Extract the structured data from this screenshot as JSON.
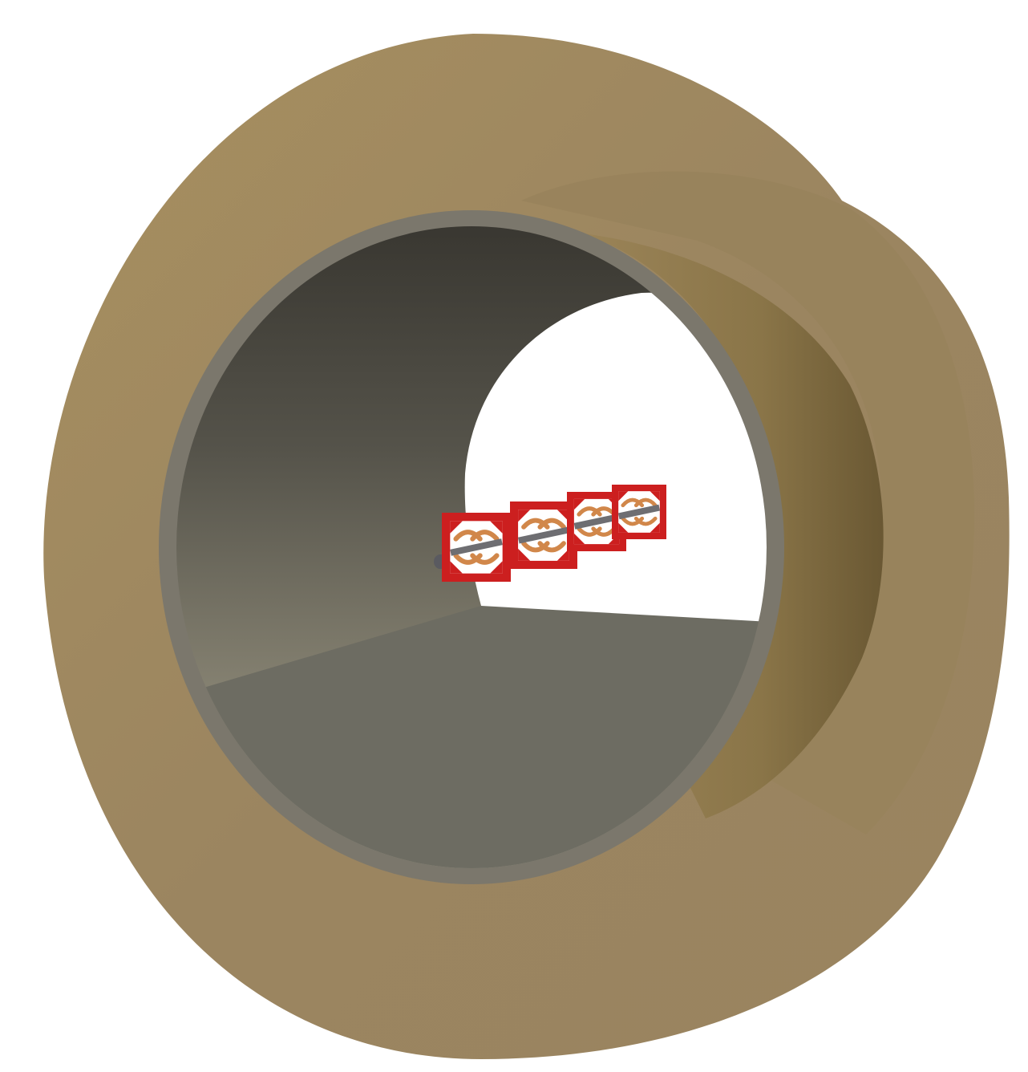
{
  "scene": {
    "background": "#ffffff",
    "outer_shell_color": "#9d8660",
    "outer_shell_highlight": "#b09662",
    "inner_wall_color": "#6e6c60",
    "inner_rim_color": "#7b776c",
    "tunnel_ceiling_dark": "#383630",
    "tunnel_wall_light": "#a29c86",
    "tunnel_floor_color": "#6d6c62",
    "magnet_frame_color": "#cc1f1f",
    "coil_color": "#d1874a",
    "beam_pipe_color": "#6e6e72",
    "magnet_modules": [
      {
        "name": "magnet-module-1"
      },
      {
        "name": "magnet-module-2"
      },
      {
        "name": "magnet-module-3"
      },
      {
        "name": "magnet-module-4"
      }
    ]
  }
}
